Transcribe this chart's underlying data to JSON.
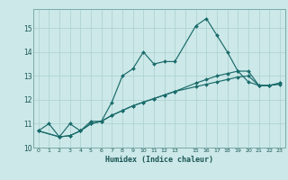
{
  "xlabel": "Humidex (Indice chaleur)",
  "bg_color": "#cce8e8",
  "grid_color": "#aacfcf",
  "line_color": "#1a6b6b",
  "xlim": [
    -0.5,
    23.5
  ],
  "ylim": [
    10.0,
    15.8
  ],
  "yticks": [
    10,
    11,
    12,
    13,
    14,
    15
  ],
  "xtick_positions": [
    0,
    1,
    2,
    3,
    4,
    5,
    6,
    7,
    8,
    9,
    10,
    11,
    12,
    13,
    14,
    15,
    16,
    17,
    18,
    19,
    20,
    21,
    22,
    23
  ],
  "xtick_labels": [
    "0",
    "1",
    "2",
    "3",
    "4",
    "5",
    "6",
    "7",
    "8",
    "9",
    "10",
    "11",
    "12",
    "13",
    "",
    "15",
    "16",
    "17",
    "18",
    "19",
    "20",
    "21",
    "22",
    "23"
  ],
  "series": [
    {
      "x": [
        0,
        1,
        2,
        3,
        4,
        5,
        6,
        7,
        8,
        9,
        10,
        11,
        12,
        13,
        15,
        16,
        17,
        18,
        19,
        20,
        21,
        22,
        23
      ],
      "y": [
        10.7,
        11.0,
        10.45,
        11.0,
        10.7,
        11.1,
        11.1,
        11.9,
        13.0,
        13.3,
        14.0,
        13.5,
        13.6,
        13.6,
        15.1,
        15.4,
        14.7,
        14.0,
        13.2,
        12.75,
        12.6,
        12.6,
        12.7
      ]
    },
    {
      "x": [
        0,
        2,
        3,
        4,
        5,
        6,
        7,
        8,
        9,
        10,
        11,
        12,
        13,
        15,
        16,
        17,
        18,
        19,
        20,
        21,
        22,
        23
      ],
      "y": [
        10.7,
        10.45,
        10.5,
        10.7,
        11.0,
        11.1,
        11.35,
        11.55,
        11.75,
        11.9,
        12.05,
        12.2,
        12.35,
        12.7,
        12.85,
        13.0,
        13.1,
        13.2,
        13.2,
        12.6,
        12.6,
        12.7
      ]
    },
    {
      "x": [
        0,
        2,
        3,
        4,
        5,
        6,
        7,
        8,
        9,
        10,
        11,
        12,
        13,
        15,
        16,
        17,
        18,
        19,
        20,
        21,
        22,
        23
      ],
      "y": [
        10.7,
        10.45,
        10.5,
        10.7,
        11.0,
        11.1,
        11.35,
        11.55,
        11.75,
        11.9,
        12.05,
        12.2,
        12.35,
        12.55,
        12.65,
        12.75,
        12.85,
        12.95,
        13.0,
        12.6,
        12.6,
        12.65
      ]
    }
  ]
}
